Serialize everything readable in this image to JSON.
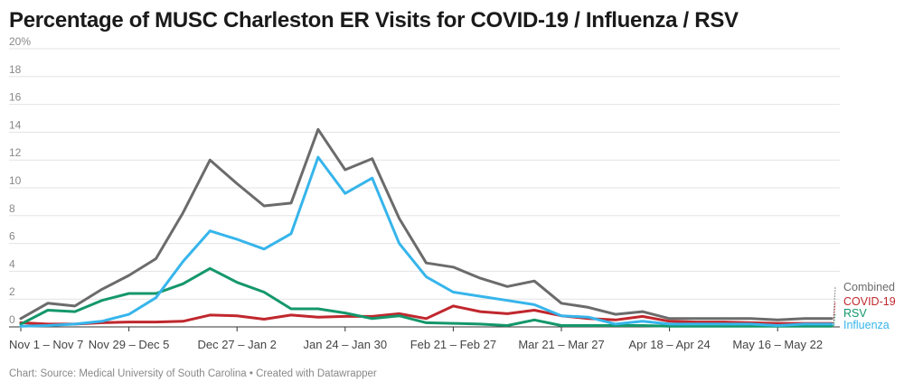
{
  "chart_data": {
    "type": "line",
    "title": "Percentage of MUSC Charleston ER Visits for COVID-19 / Influenza / RSV",
    "ylim": [
      0,
      20
    ],
    "yticks": [
      "20%",
      "18",
      "16",
      "14",
      "12",
      "10",
      "8",
      "6",
      "4",
      "2",
      "0"
    ],
    "xtick_labels": [
      "Nov 1 – Nov 7",
      "Nov 29 – Dec 5",
      "Dec 27 – Jan 2",
      "Jan 24 – Jan 30",
      "Feb 21 – Feb 27",
      "Mar 21 – Mar 27",
      "Apr 18 – Apr 24",
      "May 16 – May 22"
    ],
    "xtick_index": [
      0,
      4,
      8,
      12,
      16,
      20,
      24,
      28
    ],
    "n_weeks": 31,
    "series": [
      {
        "name": "Combined",
        "color": "#6b6b6b",
        "values": [
          0.6,
          1.7,
          1.5,
          2.7,
          3.7,
          4.9,
          8.2,
          12.0,
          10.3,
          8.7,
          8.9,
          14.2,
          11.3,
          12.1,
          7.8,
          4.6,
          4.3,
          3.5,
          2.9,
          3.3,
          1.7,
          1.4,
          0.9,
          1.1,
          0.6,
          0.6,
          0.6,
          0.6,
          0.5,
          0.6,
          0.6
        ]
      },
      {
        "name": "COVID-19",
        "color": "#c0272d",
        "values": [
          0.3,
          0.2,
          0.2,
          0.3,
          0.35,
          0.35,
          0.4,
          0.85,
          0.8,
          0.55,
          0.85,
          0.7,
          0.75,
          0.75,
          0.95,
          0.6,
          1.5,
          1.1,
          0.95,
          1.2,
          0.8,
          0.6,
          0.5,
          0.75,
          0.4,
          0.35,
          0.35,
          0.3,
          0.25,
          0.25,
          0.25
        ]
      },
      {
        "name": "RSV",
        "color": "#14976b",
        "values": [
          0.2,
          1.2,
          1.1,
          1.9,
          2.4,
          2.4,
          3.1,
          4.2,
          3.2,
          2.5,
          1.3,
          1.3,
          1.0,
          0.6,
          0.8,
          0.3,
          0.25,
          0.2,
          0.1,
          0.5,
          0.1,
          0.1,
          0.1,
          0.1,
          0.05,
          0.05,
          0.05,
          0.05,
          0.05,
          0.05,
          0.05
        ]
      },
      {
        "name": "Influenza",
        "color": "#36b5eb",
        "values": [
          0.05,
          0.1,
          0.2,
          0.4,
          0.9,
          2.1,
          4.7,
          6.9,
          6.3,
          5.6,
          6.7,
          12.2,
          9.6,
          10.7,
          6.0,
          3.6,
          2.5,
          2.2,
          1.9,
          1.6,
          0.8,
          0.7,
          0.2,
          0.4,
          0.2,
          0.2,
          0.2,
          0.2,
          0.1,
          0.2,
          0.2
        ]
      }
    ]
  },
  "footer": "Chart: Source: Medical University of South Carolina • Created with Datawrapper"
}
